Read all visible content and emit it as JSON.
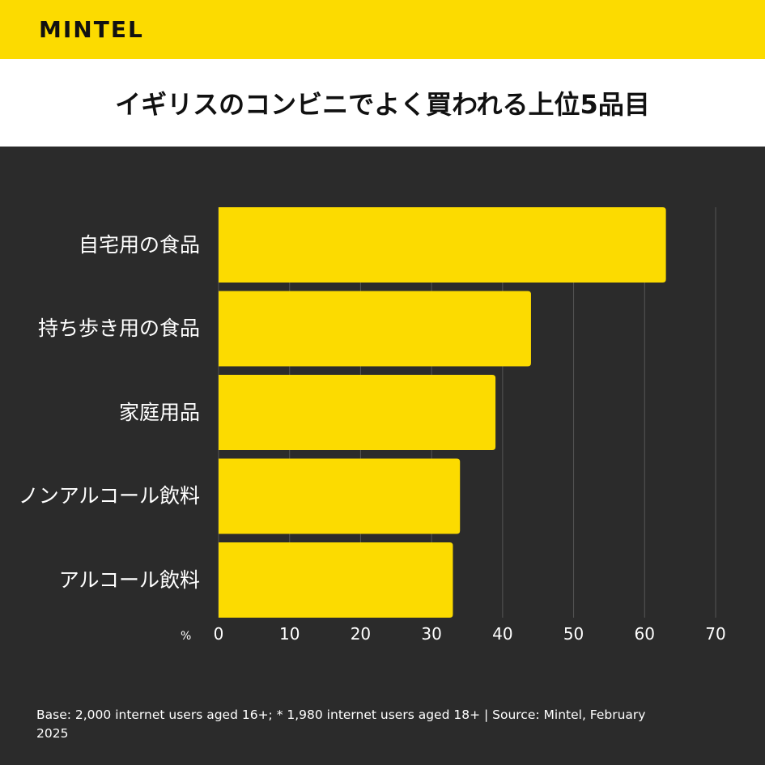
{
  "brand": {
    "name": "MINTEL"
  },
  "header": {
    "title": "イギリスのコンビニでよく買われる上位5品目"
  },
  "colors": {
    "accent": "#fcdb00",
    "background": "#2b2b2b",
    "grid": "#555555",
    "text": "#ffffff"
  },
  "chart_data": {
    "type": "bar",
    "orientation": "horizontal",
    "title": "イギリスのコンビニでよく買われる上位5品目",
    "xlabel": "%",
    "ylabel": "",
    "categories": [
      "自宅用の食品",
      "持ち歩き用の食品",
      "家庭用品",
      "ノンアルコール飲料",
      "アルコール飲料"
    ],
    "values": [
      63,
      44,
      39,
      34,
      33
    ],
    "xlim": [
      0,
      70
    ],
    "ticks": [
      "0",
      "10",
      "20",
      "30",
      "40",
      "50",
      "60",
      "70"
    ],
    "grid": true
  },
  "footer": {
    "note": "Base: 2,000 internet users aged 16+; * 1,980 internet users aged 18+ | Source: Mintel, February 2025"
  }
}
